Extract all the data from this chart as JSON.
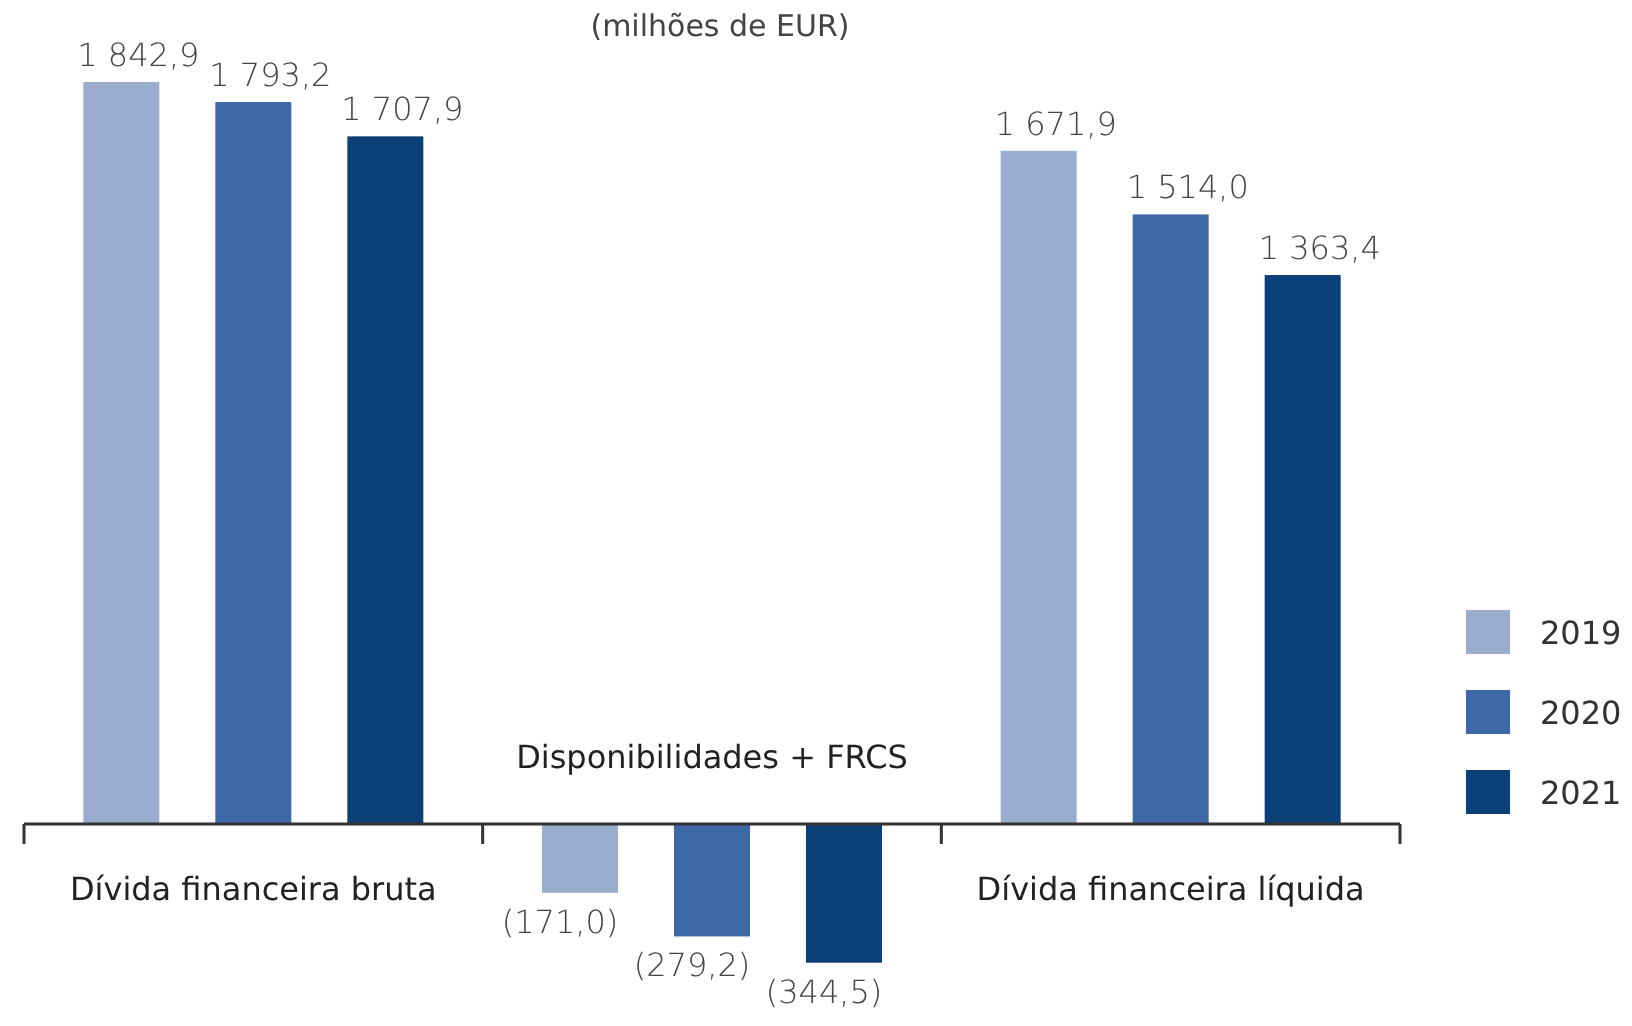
{
  "chart_data": {
    "type": "bar",
    "title": "(milhões de EUR)",
    "categories": [
      "Dívida financeira bruta",
      "Disponibilidades + FRCS",
      "Dívida financeira líquida"
    ],
    "series": [
      {
        "name": "2019",
        "color": "#9badcf",
        "values": [
          1842.9,
          -171.0,
          1671.9
        ],
        "value_labels": [
          "1 842,9",
          "(171,0)",
          "1 671,9"
        ]
      },
      {
        "name": "2020",
        "color": "#3d6aa6",
        "values": [
          1793.2,
          -279.2,
          1514.0
        ],
        "value_labels": [
          "1 793,2",
          "(279,2)",
          "1 514,0"
        ]
      },
      {
        "name": "2021",
        "color": "#0b3f77",
        "values": [
          1707.9,
          -344.5,
          1363.4
        ],
        "value_labels": [
          "1 707,9",
          "(344,5)",
          "1 363,4"
        ]
      }
    ],
    "data_labels": true,
    "legend": "right"
  }
}
